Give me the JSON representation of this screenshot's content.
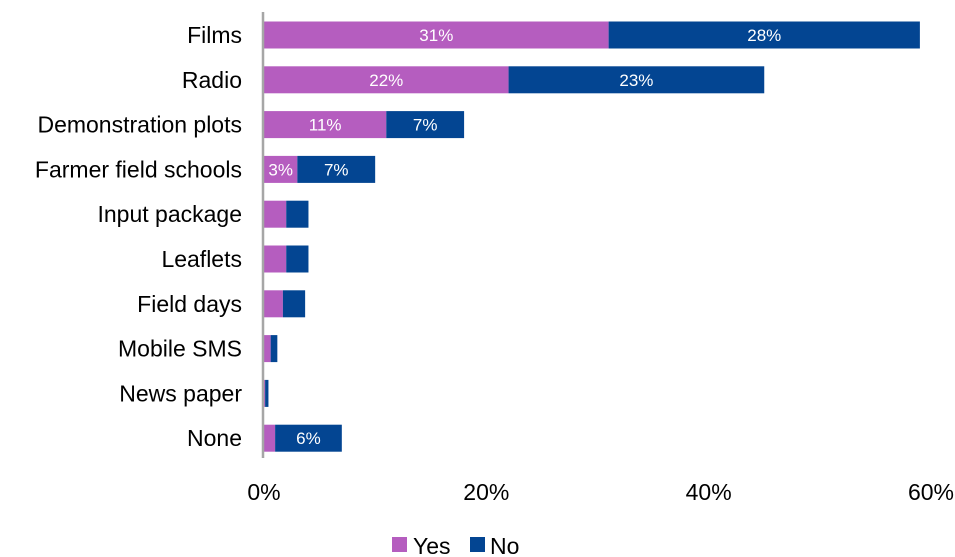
{
  "chart_data": {
    "type": "bar",
    "orientation": "horizontal",
    "stacked": true,
    "categories": [
      "Films",
      "Radio",
      "Demonstration plots",
      "Farmer field schools",
      "Input package",
      "Leaflets",
      "Field days",
      "Mobile SMS",
      "News paper",
      "None"
    ],
    "series": [
      {
        "name": "Yes",
        "color": "#B55DBF",
        "values": [
          31,
          22,
          11,
          3,
          2,
          2,
          1.7,
          0.6,
          0.1,
          1
        ],
        "labels": [
          "31%",
          "22%",
          "11%",
          "3%",
          "",
          "",
          "",
          "",
          "",
          ""
        ]
      },
      {
        "name": "No",
        "color": "#034592",
        "values": [
          28,
          23,
          7,
          7,
          2,
          2,
          2,
          0.6,
          0.3,
          6
        ],
        "labels": [
          "28%",
          "23%",
          "7%",
          "7%",
          "",
          "",
          "",
          "",
          "",
          "6%"
        ]
      }
    ],
    "xlim": [
      0,
      60
    ],
    "xticks": [
      0,
      20,
      40,
      60
    ],
    "xtick_labels": [
      "0%",
      "20%",
      "40%",
      "60%"
    ],
    "grid": false,
    "legend_position": "bottom",
    "axis_color": "#A6A6A6"
  }
}
